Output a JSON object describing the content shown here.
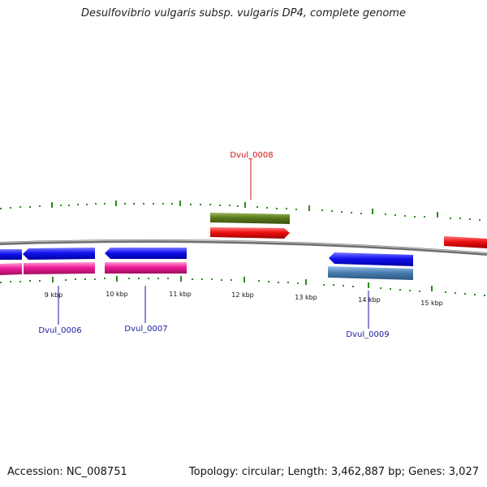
{
  "title": "Desulfovibrio vulgaris subsp. vulgaris DP4, complete genome",
  "footer": {
    "accession": "Accession: NC_008751",
    "summary": "Topology: circular; Length: 3,462,887 bp; Genes: 3,027"
  },
  "scale": {
    "unit": "kbp",
    "labels": [
      "9 kbp",
      "10 kbp",
      "11 kbp",
      "12 kbp",
      "13 kbp",
      "14 kbp",
      "15 kbp"
    ]
  },
  "colors": {
    "backbone": "#8c8c8c",
    "tick": "#2e8b1e",
    "gene_forward": "#ee1111",
    "gene_reverse": "#1111ee",
    "cds_reverse": "#ee1a99",
    "misc_forward": "#5a7a1c",
    "misc_reverse": "#4a7fb0",
    "label_reverse": "#1a1aa0",
    "label_forward": "#d01010"
  },
  "gene_labels": [
    {
      "text": "Dvul_0008",
      "strand": "forward"
    },
    {
      "text": "Dvul_0006",
      "strand": "reverse"
    },
    {
      "text": "Dvul_0007",
      "strand": "reverse"
    },
    {
      "text": "Dvul_0009",
      "strand": "reverse"
    }
  ]
}
